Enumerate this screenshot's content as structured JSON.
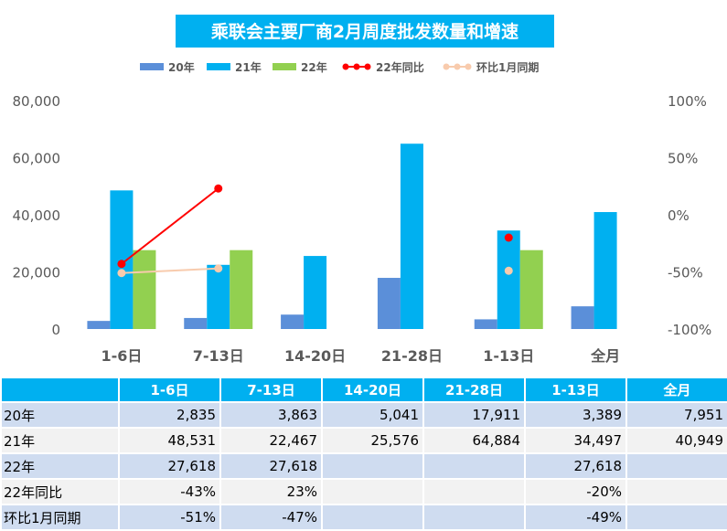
{
  "chart_data": {
    "type": "bar",
    "title": "乘联会主要厂商2月周度批发数量和增速",
    "categories": [
      "1-6日",
      "7-13日",
      "14-20日",
      "21-28日",
      "1-13日",
      "全月"
    ],
    "series": [
      {
        "name": "20年",
        "kind": "bar",
        "axis": "left",
        "color": "#5b8fd9",
        "values": [
          2835,
          3863,
          5041,
          17911,
          3389,
          7951
        ]
      },
      {
        "name": "21年",
        "kind": "bar",
        "axis": "left",
        "color": "#00b0f0",
        "values": [
          48531,
          22467,
          25576,
          64884,
          34497,
          40949
        ]
      },
      {
        "name": "22年",
        "kind": "bar",
        "axis": "left",
        "color": "#92d050",
        "values": [
          27618,
          27618,
          null,
          null,
          27618,
          null
        ]
      },
      {
        "name": "22年同比",
        "kind": "line",
        "axis": "right",
        "color": "#ff0000",
        "values": [
          -43,
          23,
          null,
          null,
          -20,
          null
        ]
      },
      {
        "name": "环比1月同期",
        "kind": "line",
        "axis": "right",
        "color": "#f8cbad",
        "values": [
          -51,
          -47,
          null,
          null,
          -49,
          null
        ]
      }
    ],
    "y_left": {
      "min": 0,
      "max": 80000,
      "ticks": [
        "0",
        "20,000",
        "40,000",
        "60,000",
        "80,000"
      ]
    },
    "y_right": {
      "min": -100,
      "max": 100,
      "unit": "%",
      "ticks": [
        "-100%",
        "-50%",
        "0%",
        "50%",
        "100%"
      ]
    },
    "legend_position": "top",
    "grid": false
  },
  "table": {
    "corner": "",
    "headers": [
      "1-6日",
      "7-13日",
      "14-20日",
      "21-28日",
      "1-13日",
      "全月"
    ],
    "rows": [
      {
        "label": "20年",
        "cells": [
          "2,835",
          "3,863",
          "5,041",
          "17,911",
          "3,389",
          "7,951"
        ]
      },
      {
        "label": "21年",
        "cells": [
          "48,531",
          "22,467",
          "25,576",
          "64,884",
          "34,497",
          "40,949"
        ]
      },
      {
        "label": "22年",
        "cells": [
          "27,618",
          "27,618",
          "",
          "",
          "27,618",
          ""
        ]
      },
      {
        "label": "22年同比",
        "cells": [
          "-43%",
          "23%",
          "",
          "",
          "-20%",
          ""
        ]
      },
      {
        "label": "环比1月同期",
        "cells": [
          "-51%",
          "-47%",
          "",
          "",
          "-49%",
          ""
        ]
      }
    ]
  }
}
